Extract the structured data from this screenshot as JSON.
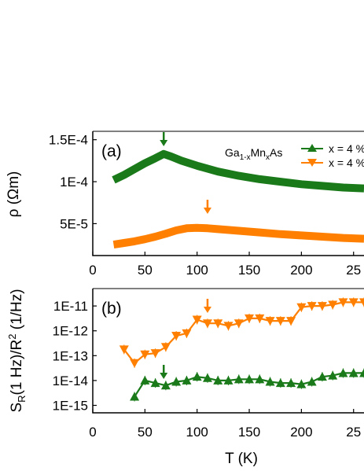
{
  "colors": {
    "green": "#1a7a1a",
    "orange": "#ff8000",
    "axis": "#000000"
  },
  "figure": {
    "xlabel": "T (K)"
  },
  "legend": {
    "material": "Ga",
    "material_sub1": "1-x",
    "material_mid": "Mn",
    "material_sub2": "x",
    "material_end": "As",
    "entries": [
      {
        "label": "x = 4 %",
        "color": "#1a7a1a",
        "marker": "triangle-up"
      },
      {
        "label": "x = 4 %",
        "color": "#ff8000",
        "marker": "triangle-down"
      }
    ]
  },
  "chart_data": [
    {
      "type": "line",
      "panel": "(a)",
      "xlabel": "T (K)",
      "ylabel": "ρ (Ωm)",
      "xlim": [
        0,
        260
      ],
      "ylim": [
        1.2e-05,
        0.00016
      ],
      "x_ticks": [
        0,
        50,
        100,
        150,
        200,
        "25"
      ],
      "y_ticks": [
        "1.5E-4",
        "1E-4",
        "5E-5"
      ],
      "y_tick_values": [
        0.00015,
        0.0001,
        5e-05
      ],
      "series": [
        {
          "color": "#1a7a1a",
          "x": [
            20,
            30,
            40,
            50,
            60,
            68,
            75,
            85,
            100,
            120,
            140,
            160,
            180,
            200,
            220,
            240,
            260
          ],
          "y": [
            0.000102,
            0.000108,
            0.000115,
            0.000122,
            0.000128,
            0.000133,
            0.00013,
            0.000125,
            0.000119,
            0.000112,
            0.000107,
            0.000103,
            0.0001,
            9.7e-05,
            9.5e-05,
            9.3e-05,
            9.2e-05
          ]
        },
        {
          "color": "#ff8000",
          "x": [
            20,
            30,
            40,
            50,
            60,
            70,
            80,
            90,
            100,
            110,
            120,
            140,
            160,
            180,
            200,
            220,
            240,
            260
          ],
          "y": [
            2.5e-05,
            2.7e-05,
            2.9e-05,
            3.15e-05,
            3.45e-05,
            3.8e-05,
            4.2e-05,
            4.45e-05,
            4.5e-05,
            4.45e-05,
            4.35e-05,
            4.15e-05,
            3.95e-05,
            3.75e-05,
            3.6e-05,
            3.45e-05,
            3.3e-05,
            3.2e-05
          ]
        }
      ],
      "arrows": [
        {
          "x": 68,
          "color": "#1a7a1a"
        },
        {
          "x": 110,
          "color": "#ff8000"
        }
      ]
    },
    {
      "type": "line",
      "panel": "(b)",
      "xlabel": "T (K)",
      "ylabel": "S_R(1 Hz)/R² (1/Hz)",
      "ylabel_parts": {
        "s": "S",
        "sub": "R",
        "mid": "(1 Hz)/R",
        "sup": "2",
        "end": " (1/Hz)"
      },
      "log_y": true,
      "xlim": [
        0,
        260
      ],
      "ylim_log10": [
        -15.3,
        -10.3
      ],
      "x_ticks": [
        0,
        50,
        100,
        150,
        200,
        "25"
      ],
      "y_ticks": [
        "1E-11",
        "1E-12",
        "1E-13",
        "1E-14",
        "1E-15"
      ],
      "y_tick_exponents": [
        -11,
        -12,
        -13,
        -14,
        -15
      ],
      "series": [
        {
          "color": "#ff8000",
          "marker": "triangle-down",
          "x": [
            30,
            40,
            50,
            60,
            70,
            80,
            90,
            100,
            110,
            120,
            130,
            140,
            150,
            160,
            170,
            180,
            190,
            200,
            210,
            220,
            230,
            240,
            250,
            260
          ],
          "y_log10": [
            -12.75,
            -13.3,
            -12.95,
            -12.9,
            -12.65,
            -12.2,
            -12.1,
            -11.55,
            -11.7,
            -11.7,
            -11.8,
            -11.7,
            -11.5,
            -11.5,
            -11.6,
            -11.6,
            -11.6,
            -11.05,
            -11.0,
            -11.0,
            -10.95,
            -10.85,
            -10.85,
            -10.85
          ]
        },
        {
          "color": "#1a7a1a",
          "marker": "triangle-up",
          "x": [
            40,
            50,
            60,
            70,
            80,
            90,
            100,
            110,
            120,
            130,
            140,
            150,
            160,
            170,
            180,
            190,
            200,
            210,
            220,
            230,
            240,
            250,
            260
          ],
          "y_log10": [
            -14.65,
            -14.0,
            -14.1,
            -14.2,
            -14.05,
            -14.0,
            -13.85,
            -13.9,
            -14.0,
            -14.0,
            -13.95,
            -13.95,
            -13.95,
            -14.05,
            -14.1,
            -14.1,
            -14.15,
            -14.05,
            -13.85,
            -13.8,
            -13.7,
            -13.7,
            -13.7
          ]
        }
      ],
      "arrows": [
        {
          "x": 68,
          "color": "#1a7a1a"
        },
        {
          "x": 110,
          "color": "#ff8000"
        }
      ]
    }
  ]
}
